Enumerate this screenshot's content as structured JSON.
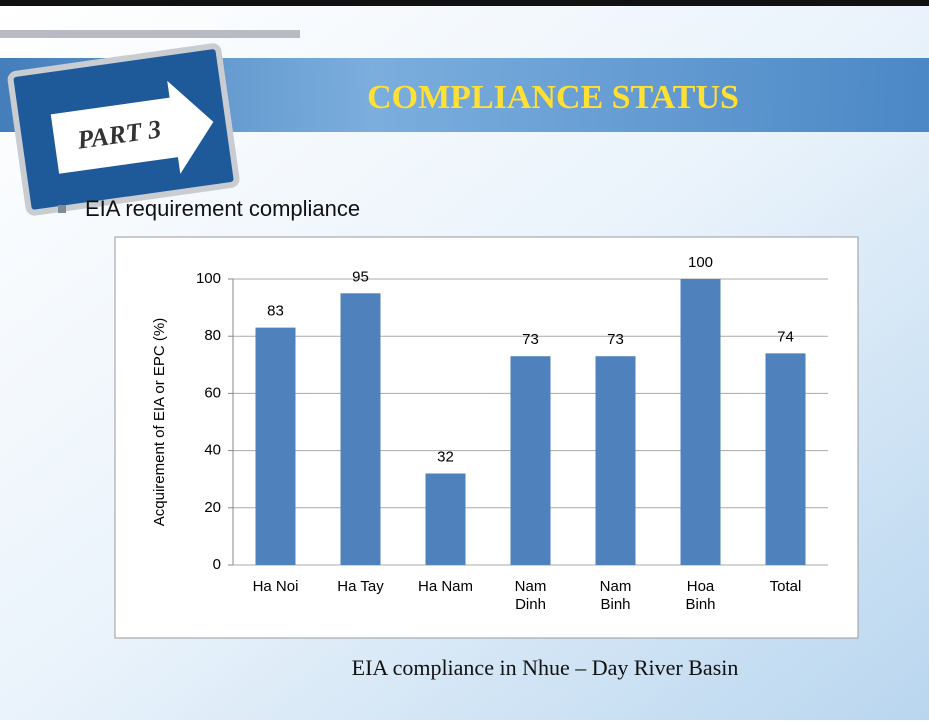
{
  "slide": {
    "part_label": "PART 3",
    "title": "COMPLIANCE STATUS",
    "bullet": "EIA requirement compliance",
    "caption": "EIA compliance in Nhue – Day River Basin"
  },
  "chart_data": {
    "type": "bar",
    "y_label": "Acquirement of EIA or EPC (%)",
    "categories": [
      "Ha Noi",
      "Ha Tay",
      "Ha Nam",
      "Nam\nDinh",
      "Nam\nBinh",
      "Hoa\nBinh",
      "Total"
    ],
    "values": [
      83,
      95,
      32,
      73,
      73,
      100,
      74
    ],
    "color": "#4f81bd",
    "ylim": [
      0,
      100
    ],
    "yticks": [
      0,
      20,
      40,
      60,
      80,
      100
    ],
    "grid": true
  }
}
